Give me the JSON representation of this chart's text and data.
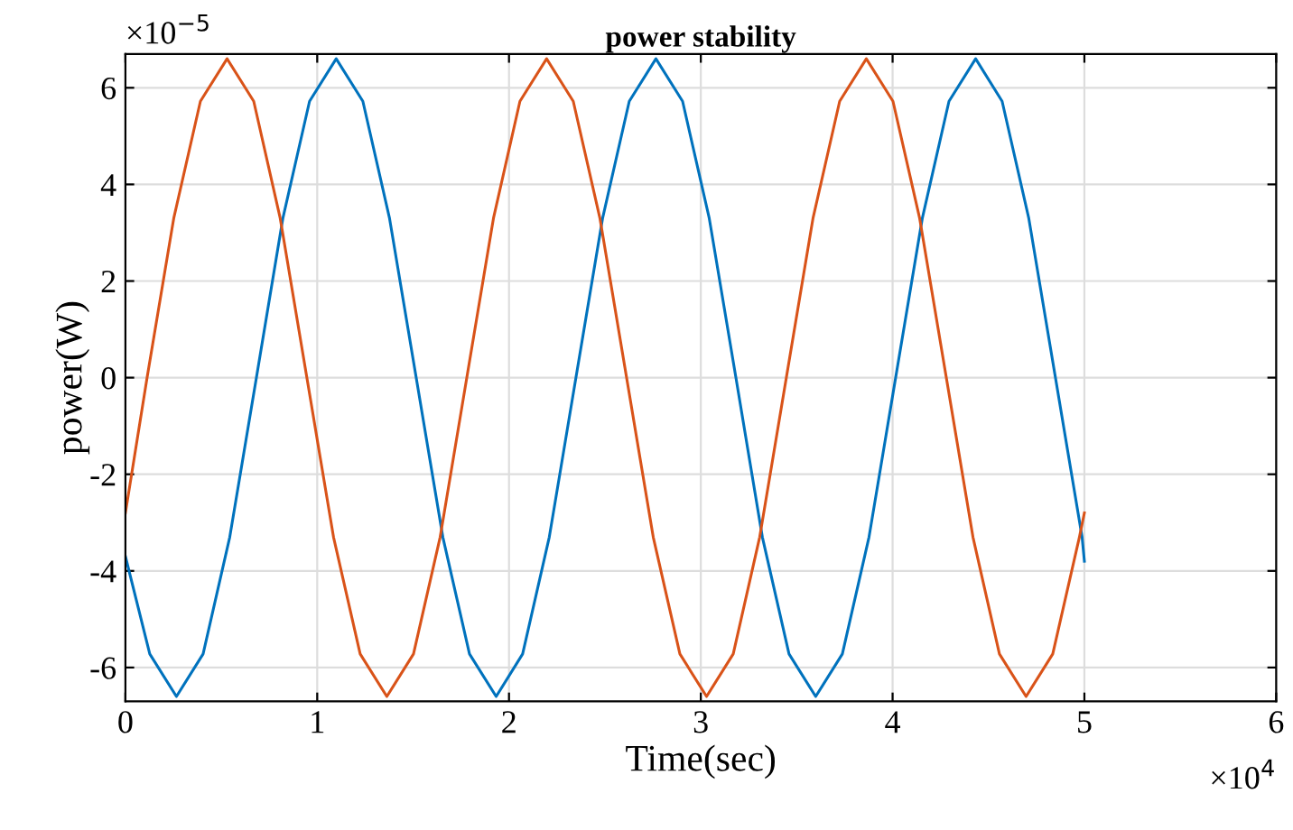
{
  "chart_data": {
    "type": "line",
    "title": "power stability",
    "xlabel": "Time(sec)",
    "ylabel": "power(W)",
    "annotations": [
      "×10$^{−5}$",
      "×10$^{4}$"
    ],
    "xlim": [
      0,
      6
    ],
    "xticks": [
      0,
      1,
      2,
      3,
      4,
      5,
      6
    ],
    "ylim": [
      -6.7,
      6.7
    ],
    "yticks": [
      -6,
      -4,
      -2,
      0,
      2,
      4,
      6
    ],
    "grid": true,
    "line_style": "solid",
    "marker": "none",
    "series": [
      {
        "color": "#0072bd",
        "x": [
          0,
          0.127,
          0.266,
          0.405,
          0.544,
          0.683,
          0.821,
          0.96,
          1.099,
          1.238,
          1.377,
          1.516,
          1.655,
          1.794,
          1.933,
          2.071,
          2.21,
          2.349,
          2.488,
          2.627,
          2.766,
          2.905,
          3.044,
          3.183,
          3.321,
          3.46,
          3.599,
          3.738,
          3.877,
          4.016,
          4.155,
          4.294,
          4.433,
          4.571,
          4.71,
          4.849,
          4.988,
          5
        ],
        "values": [
          -3.7,
          -5.72,
          -6.6,
          -5.72,
          -3.3,
          0,
          3.3,
          5.72,
          6.6,
          5.72,
          3.3,
          0,
          -3.3,
          -5.72,
          -6.6,
          -5.72,
          -3.3,
          0,
          3.3,
          5.72,
          6.6,
          5.72,
          3.3,
          0,
          -3.3,
          -5.72,
          -6.6,
          -5.72,
          -3.3,
          0,
          3.3,
          5.72,
          6.6,
          5.72,
          3.3,
          0,
          -3.3,
          -3.8
        ]
      },
      {
        "color": "#d95319",
        "x": [
          0,
          0.113,
          0.252,
          0.391,
          0.53,
          0.669,
          0.807,
          0.946,
          1.085,
          1.224,
          1.363,
          1.502,
          1.641,
          1.78,
          1.919,
          2.057,
          2.196,
          2.335,
          2.474,
          2.613,
          2.752,
          2.891,
          3.03,
          3.169,
          3.307,
          3.446,
          3.585,
          3.724,
          3.863,
          4.002,
          4.141,
          4.28,
          4.419,
          4.557,
          4.696,
          4.835,
          4.974,
          5
        ],
        "values": [
          -2.8,
          0,
          3.3,
          5.72,
          6.6,
          5.72,
          3.3,
          0,
          -3.3,
          -5.72,
          -6.6,
          -5.72,
          -3.3,
          0,
          3.3,
          5.72,
          6.6,
          5.72,
          3.3,
          0,
          -3.3,
          -5.72,
          -6.6,
          -5.72,
          -3.3,
          0,
          3.3,
          5.72,
          6.6,
          5.72,
          3.3,
          0,
          -3.3,
          -5.72,
          -6.6,
          -5.72,
          -3.3,
          -2.8
        ]
      }
    ]
  }
}
